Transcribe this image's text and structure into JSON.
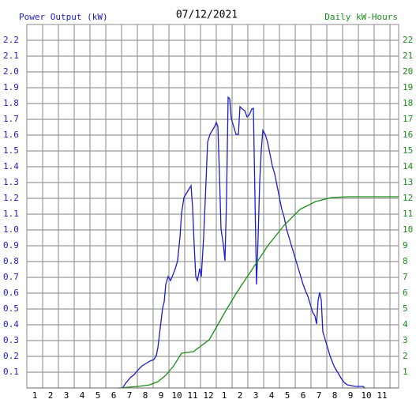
{
  "chart_data": {
    "type": "line",
    "title": "07/12/2021",
    "y_label": "Power Output (kW)",
    "y2_label": "Daily kW-Hours",
    "xlim": [
      0.5,
      24.05
    ],
    "xticks": [
      1,
      2,
      3,
      4,
      5,
      6,
      7,
      8,
      9,
      10,
      11,
      12,
      {
        "value": 13,
        "label": "1"
      },
      {
        "value": 14,
        "label": "2"
      },
      {
        "value": 15,
        "label": "3"
      },
      {
        "value": 16,
        "label": "4"
      },
      {
        "value": 17,
        "label": "5"
      },
      {
        "value": 18,
        "label": "6"
      },
      {
        "value": 19,
        "label": "7"
      },
      {
        "value": 20,
        "label": "8"
      },
      {
        "value": 21,
        "label": "9"
      },
      {
        "value": 22,
        "label": "10"
      },
      {
        "value": 23,
        "label": "11"
      }
    ],
    "ylim": [
      0,
      2.3
    ],
    "yticks": [
      0.1,
      0.2,
      0.3,
      0.4,
      0.5,
      0.6,
      0.7,
      0.8,
      0.9,
      {
        "value": 1.0,
        "label": "1.0"
      },
      1.1,
      1.2,
      1.3,
      1.4,
      1.5,
      1.6,
      1.7,
      1.8,
      1.9,
      {
        "value": 2.0,
        "label": "2.0"
      },
      2.1,
      2.2
    ],
    "y2lim": [
      0,
      23
    ],
    "y2ticks": [
      1,
      2,
      3,
      4,
      5,
      6,
      7,
      8,
      9,
      10,
      11,
      12,
      13,
      14,
      15,
      16,
      17,
      18,
      19,
      20,
      21,
      22
    ],
    "grid": true,
    "series": [
      {
        "name": "Power Output (kW)",
        "color": "#1c1cc8",
        "axis": "y",
        "x": [
          6.55,
          6.8,
          7.05,
          7.3,
          7.55,
          7.8,
          8.05,
          8.3,
          8.55,
          8.7,
          8.8,
          8.95,
          9.1,
          9.2,
          9.3,
          9.45,
          9.6,
          9.75,
          9.9,
          10.05,
          10.2,
          10.3,
          10.45,
          10.6,
          10.75,
          10.9,
          11.0,
          11.1,
          11.2,
          11.3,
          11.45,
          11.55,
          11.7,
          11.85,
          11.95,
          12.1,
          12.25,
          12.4,
          12.5,
          12.6,
          12.7,
          12.8,
          12.95,
          13.05,
          13.15,
          13.25,
          13.35,
          13.45,
          13.6,
          13.75,
          13.9,
          14.0,
          14.15,
          14.3,
          14.45,
          14.6,
          14.75,
          14.85,
          14.95,
          15.05,
          15.15,
          15.25,
          15.35,
          15.45,
          15.6,
          15.75,
          15.9,
          16.05,
          16.2,
          16.35,
          16.5,
          16.65,
          16.8,
          16.95,
          17.1,
          17.25,
          17.4,
          17.55,
          17.7,
          17.85,
          18.0,
          18.15,
          18.3,
          18.45,
          18.6,
          18.75,
          18.85,
          18.95,
          19.05,
          19.15,
          19.25,
          19.4,
          19.55,
          19.7,
          19.85,
          20.0,
          20.15,
          20.3,
          20.45,
          20.6,
          20.8,
          21.3,
          21.8,
          21.9
        ],
        "values": [
          0,
          0.035,
          0.065,
          0.085,
          0.115,
          0.14,
          0.155,
          0.17,
          0.18,
          0.205,
          0.255,
          0.38,
          0.505,
          0.545,
          0.655,
          0.705,
          0.68,
          0.715,
          0.755,
          0.805,
          0.955,
          1.105,
          1.205,
          1.23,
          1.255,
          1.28,
          1.14,
          0.905,
          0.705,
          0.68,
          0.755,
          0.705,
          0.955,
          1.305,
          1.555,
          1.605,
          1.63,
          1.655,
          1.68,
          1.655,
          1.355,
          1.005,
          0.905,
          0.805,
          1.205,
          1.84,
          1.83,
          1.705,
          1.655,
          1.605,
          1.605,
          1.78,
          1.765,
          1.755,
          1.715,
          1.73,
          1.765,
          1.77,
          1.205,
          0.655,
          0.955,
          1.305,
          1.505,
          1.63,
          1.605,
          1.555,
          1.48,
          1.405,
          1.355,
          1.28,
          1.205,
          1.13,
          1.08,
          1.005,
          0.955,
          0.905,
          0.855,
          0.805,
          0.755,
          0.705,
          0.655,
          0.615,
          0.58,
          0.53,
          0.48,
          0.455,
          0.405,
          0.555,
          0.605,
          0.555,
          0.355,
          0.305,
          0.255,
          0.205,
          0.165,
          0.13,
          0.105,
          0.08,
          0.055,
          0.035,
          0.02,
          0.01,
          0.01,
          0
        ]
      },
      {
        "name": "Daily kW-Hours",
        "color": "#1a8c1a",
        "axis": "y2",
        "x": [
          6.3,
          7.55,
          8.3,
          8.8,
          9.3,
          9.8,
          10.3,
          11.05,
          12.05,
          13.05,
          13.8,
          14.8,
          15.8,
          16.8,
          17.8,
          18.8,
          19.8,
          20.8,
          24.05
        ],
        "values": [
          0,
          0.1,
          0.2,
          0.4,
          0.8,
          1.4,
          2.2,
          2.3,
          3.05,
          4.8,
          6.05,
          7.55,
          9.05,
          10.3,
          11.3,
          11.8,
          12.05,
          12.1,
          12.1
        ]
      }
    ]
  }
}
